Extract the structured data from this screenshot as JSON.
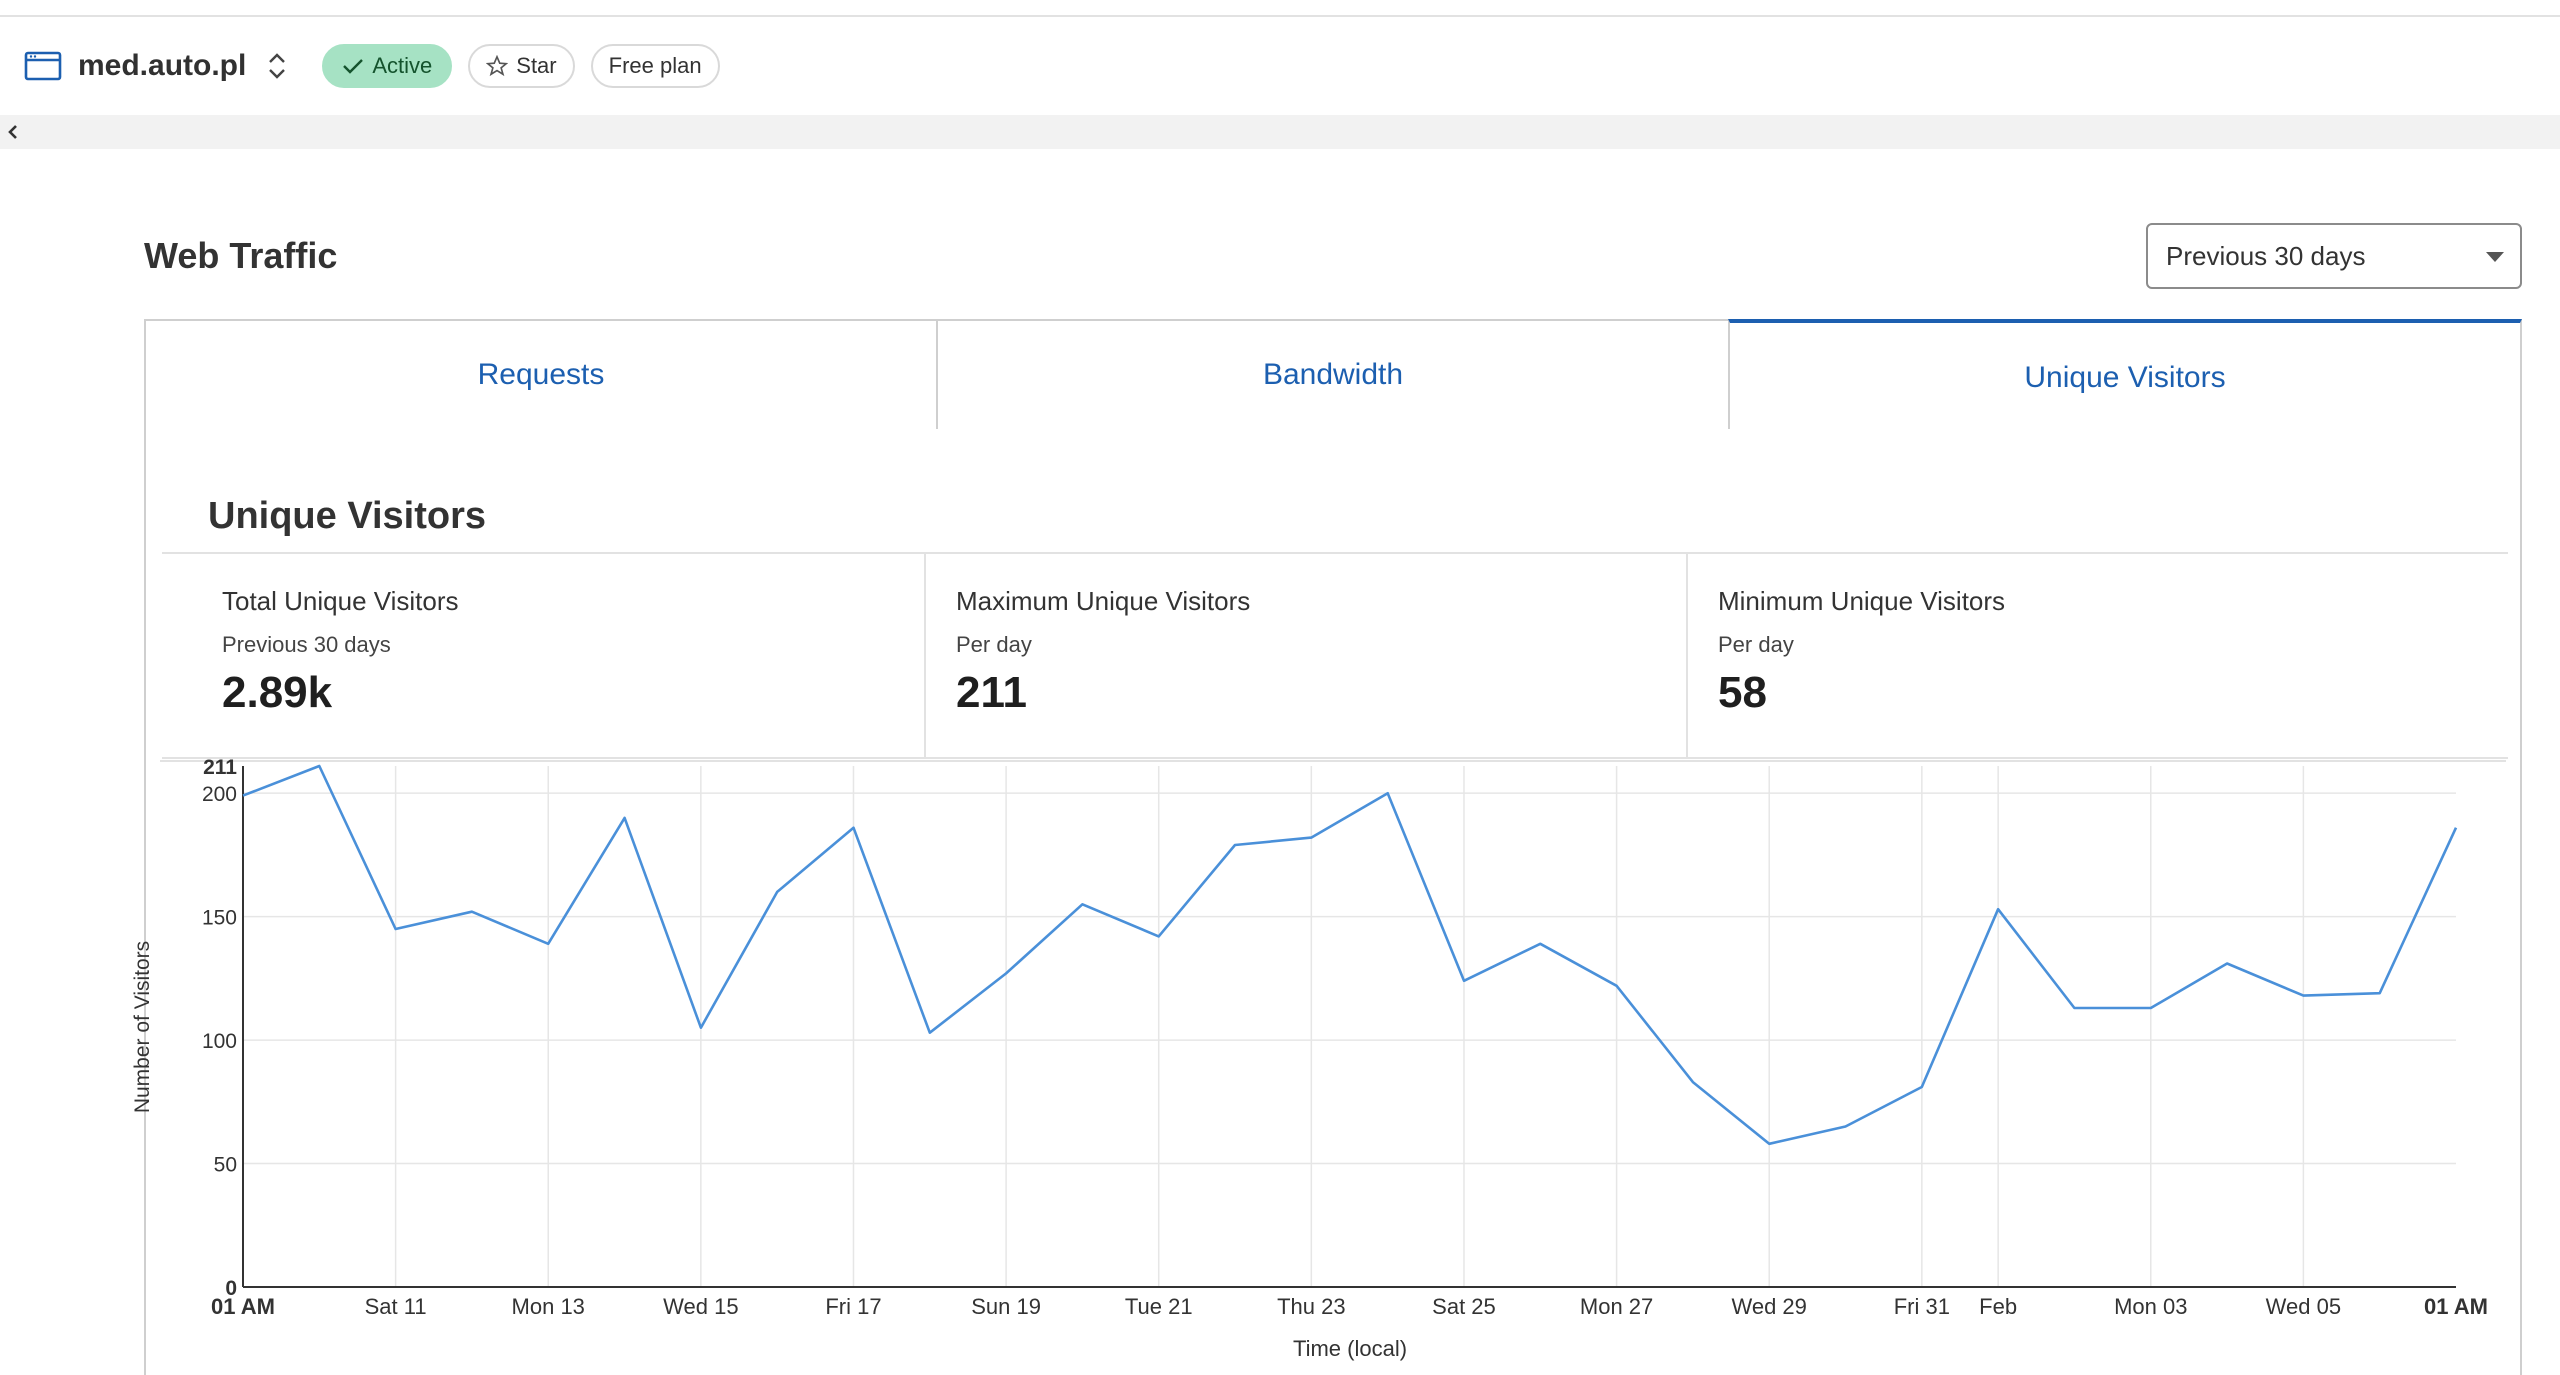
{
  "header": {
    "site_name": "med.auto.pl",
    "status_label": "Active",
    "star_label": "Star",
    "plan_label": "Free plan"
  },
  "traffic": {
    "title": "Web Traffic",
    "range": "Previous 30 days",
    "tabs": [
      {
        "label": "Requests"
      },
      {
        "label": "Bandwidth"
      },
      {
        "label": "Unique Visitors"
      }
    ],
    "active_tab": "Unique Visitors"
  },
  "panel": {
    "title": "Unique Visitors",
    "stats": [
      {
        "label": "Total Unique Visitors",
        "sub": "Previous 30 days",
        "value": "2.89k"
      },
      {
        "label": "Maximum Unique Visitors",
        "sub": "Per day",
        "value": "211"
      },
      {
        "label": "Minimum Unique Visitors",
        "sub": "Per day",
        "value": "58"
      }
    ]
  },
  "colors": {
    "accent": "#1c5fb0",
    "line": "#4a90d9",
    "active_pill": "#a6e2c4"
  },
  "chart_data": {
    "type": "line",
    "xlabel": "Time (local)",
    "ylabel": "Number of Visitors",
    "ylim": [
      0,
      211
    ],
    "yticks": [
      0,
      50,
      100,
      150,
      200,
      211
    ],
    "grid": true,
    "x_tick_labels": [
      "01 AM",
      "Sat 11",
      "Mon 13",
      "Wed 15",
      "Fri 17",
      "Sun 19",
      "Tue 21",
      "Thu 23",
      "Sat 25",
      "Mon 27",
      "Wed 29",
      "Fri 31",
      "Feb",
      "Mon 03",
      "Wed 05",
      "01 AM"
    ],
    "x_tick_days": [
      0,
      2,
      4,
      6,
      8,
      10,
      12,
      14,
      16,
      18,
      20,
      22,
      23,
      25,
      27,
      29
    ],
    "series": [
      {
        "values": [
          199,
          211,
          145,
          152,
          139,
          190,
          105,
          160,
          186,
          103,
          127,
          155,
          142,
          179,
          182,
          200,
          124,
          139,
          122,
          83,
          58,
          65,
          81,
          153,
          113,
          113,
          131,
          118,
          119,
          186
        ]
      }
    ]
  }
}
